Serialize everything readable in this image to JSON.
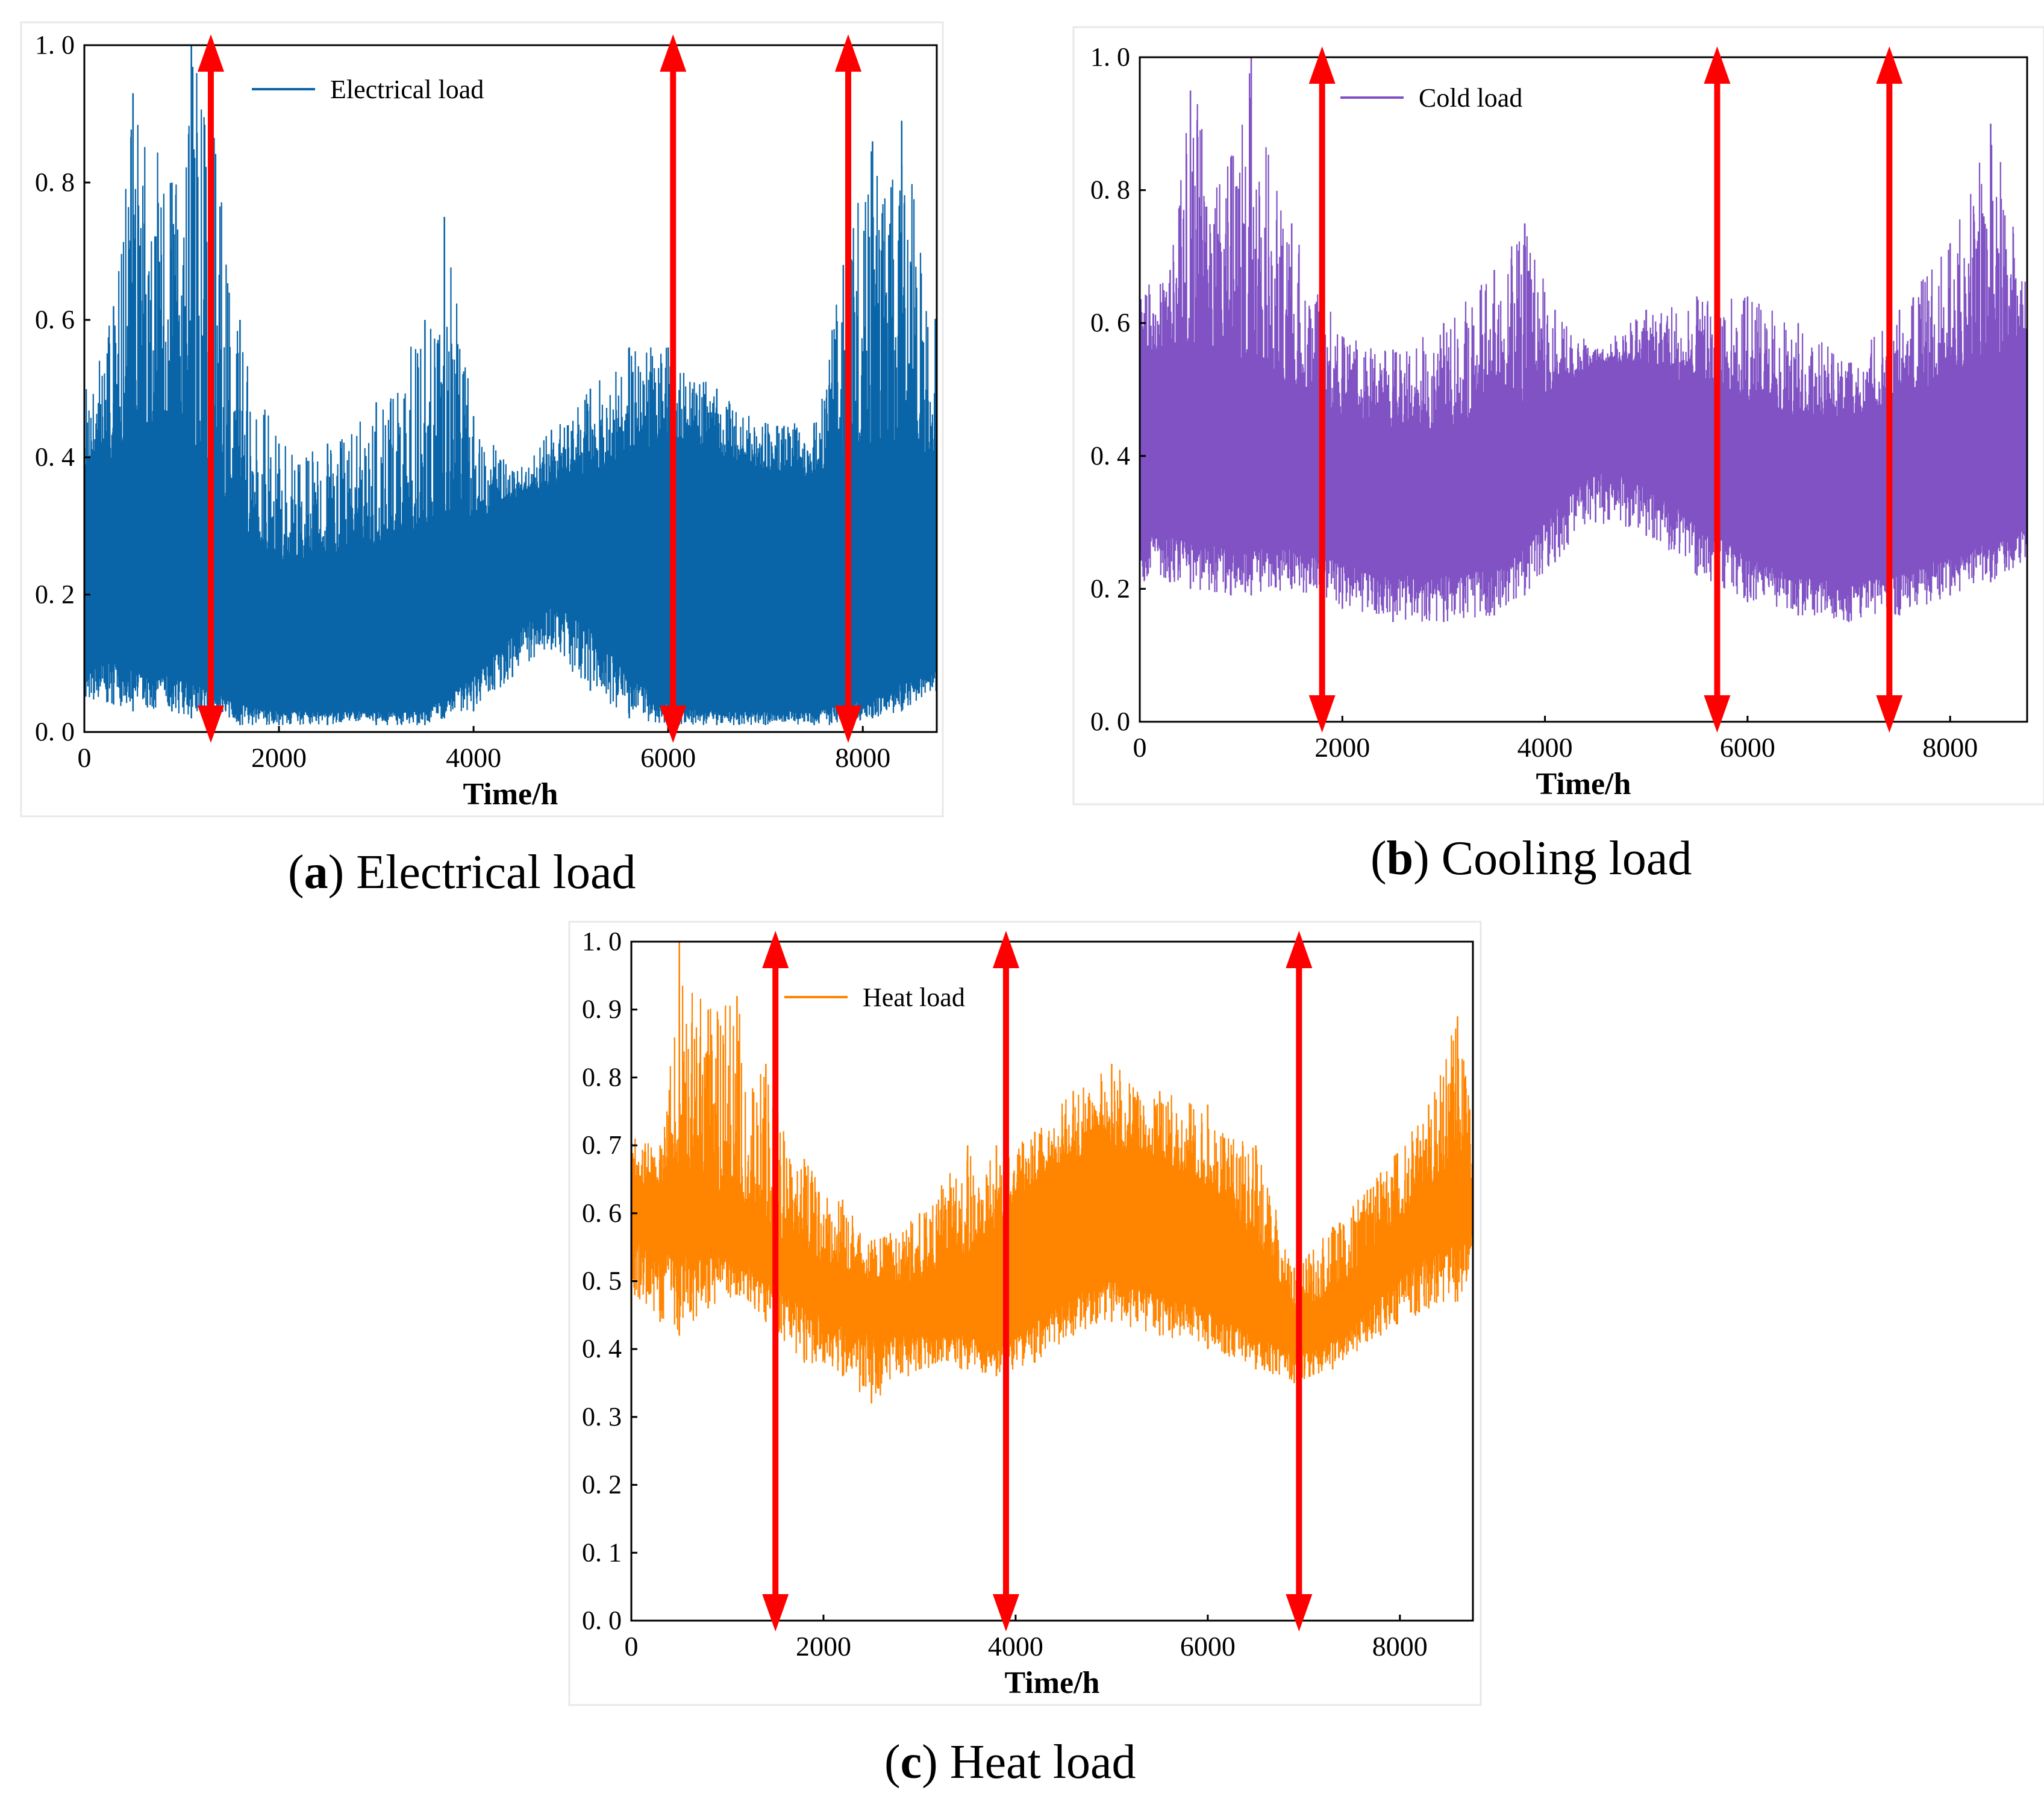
{
  "figure": {
    "x_label": "Time/h",
    "x_ticks": [
      "0",
      "2000",
      "4000",
      "6000",
      "8000"
    ],
    "arrow_color": "#ff0000"
  },
  "chart_data": [
    {
      "type": "line",
      "caption_letter": "a",
      "caption_text": "Electrical load",
      "legend": "Electrical load",
      "color": "#0a65a8",
      "xlabel": "Time/h",
      "ylabel": "",
      "xlim": [
        0,
        8760
      ],
      "ylim": [
        0,
        1.0
      ],
      "x_ticks": [
        0,
        2000,
        4000,
        6000,
        8000
      ],
      "y_ticks": [
        0.0,
        0.2,
        0.4,
        0.6,
        0.8,
        1.0
      ],
      "y_tick_labels": [
        "0. 0",
        "0. 2",
        "0. 4",
        "0. 6",
        "0. 8",
        "1. 0"
      ],
      "legend_position": "top-left",
      "marker_lines_x": [
        1300,
        6050,
        7850
      ],
      "envelope_x": [
        0,
        300,
        500,
        900,
        1100,
        1300,
        1600,
        2000,
        2500,
        3000,
        3500,
        3700,
        4000,
        4400,
        4800,
        5200,
        5600,
        6000,
        6500,
        7000,
        7500,
        7800,
        8100,
        8400,
        8760
      ],
      "envelope_upper": [
        0.5,
        0.62,
        0.93,
        0.8,
        1.0,
        0.9,
        0.6,
        0.42,
        0.42,
        0.48,
        0.6,
        0.75,
        0.46,
        0.38,
        0.44,
        0.5,
        0.56,
        0.56,
        0.5,
        0.45,
        0.45,
        0.68,
        0.86,
        0.89,
        0.66
      ],
      "envelope_lower": [
        0.05,
        0.04,
        0.03,
        0.03,
        0.02,
        0.02,
        0.01,
        0.01,
        0.01,
        0.01,
        0.01,
        0.02,
        0.03,
        0.08,
        0.12,
        0.06,
        0.02,
        0.01,
        0.01,
        0.01,
        0.01,
        0.01,
        0.02,
        0.03,
        0.06
      ],
      "core_upper": [
        0.38,
        0.4,
        0.45,
        0.42,
        0.42,
        0.38,
        0.3,
        0.25,
        0.25,
        0.27,
        0.3,
        0.32,
        0.3,
        0.34,
        0.36,
        0.38,
        0.4,
        0.42,
        0.4,
        0.38,
        0.37,
        0.4,
        0.42,
        0.42,
        0.4
      ],
      "core_lower": [
        0.1,
        0.1,
        0.09,
        0.08,
        0.07,
        0.06,
        0.04,
        0.03,
        0.03,
        0.03,
        0.03,
        0.05,
        0.08,
        0.14,
        0.19,
        0.15,
        0.08,
        0.04,
        0.03,
        0.03,
        0.03,
        0.04,
        0.05,
        0.07,
        0.09
      ]
    },
    {
      "type": "line",
      "caption_letter": "b",
      "caption_text": "Cooling load",
      "legend": "Cold load",
      "color": "#8052c4",
      "xlabel": "Time/h",
      "ylabel": "",
      "xlim": [
        0,
        8760
      ],
      "ylim": [
        0,
        1.0
      ],
      "x_ticks": [
        0,
        2000,
        4000,
        6000,
        8000
      ],
      "y_ticks": [
        0.0,
        0.2,
        0.4,
        0.6,
        0.8,
        1.0
      ],
      "y_tick_labels": [
        "0. 0",
        "0. 2",
        "0. 4",
        "0. 6",
        "0. 8",
        "1. 0"
      ],
      "legend_position": "top-left",
      "marker_lines_x": [
        1800,
        5700,
        7400
      ],
      "envelope_x": [
        0,
        300,
        500,
        900,
        1100,
        1500,
        2000,
        2500,
        3000,
        3500,
        3800,
        4100,
        4500,
        5000,
        5500,
        6000,
        6500,
        7000,
        7500,
        8000,
        8400,
        8760
      ],
      "envelope_upper": [
        0.66,
        0.68,
        0.95,
        0.85,
        1.0,
        0.75,
        0.58,
        0.56,
        0.6,
        0.68,
        0.75,
        0.62,
        0.56,
        0.62,
        0.64,
        0.64,
        0.6,
        0.54,
        0.62,
        0.72,
        0.9,
        0.72
      ],
      "envelope_lower": [
        0.21,
        0.21,
        0.2,
        0.19,
        0.19,
        0.2,
        0.17,
        0.15,
        0.15,
        0.16,
        0.19,
        0.24,
        0.3,
        0.28,
        0.22,
        0.18,
        0.16,
        0.15,
        0.16,
        0.19,
        0.21,
        0.24
      ],
      "core_upper": [
        0.56,
        0.56,
        0.57,
        0.55,
        0.54,
        0.5,
        0.46,
        0.44,
        0.44,
        0.46,
        0.48,
        0.5,
        0.54,
        0.54,
        0.5,
        0.48,
        0.46,
        0.46,
        0.48,
        0.52,
        0.54,
        0.54
      ],
      "core_lower": [
        0.28,
        0.28,
        0.27,
        0.26,
        0.26,
        0.26,
        0.24,
        0.22,
        0.22,
        0.23,
        0.26,
        0.32,
        0.38,
        0.36,
        0.3,
        0.25,
        0.22,
        0.21,
        0.22,
        0.25,
        0.27,
        0.29
      ]
    },
    {
      "type": "line",
      "caption_letter": "c",
      "caption_text": "Heat load",
      "legend": "Heat load",
      "color": "#ff8400",
      "xlabel": "Time/h",
      "ylabel": "",
      "xlim": [
        0,
        8760
      ],
      "ylim": [
        0,
        1.0
      ],
      "x_ticks": [
        0,
        2000,
        4000,
        6000,
        8000
      ],
      "y_ticks": [
        0.0,
        0.1,
        0.2,
        0.3,
        0.4,
        0.5,
        0.6,
        0.7,
        0.8,
        0.9,
        1.0
      ],
      "y_tick_labels": [
        "0. 0",
        "0. 1",
        "0. 2",
        "0. 3",
        "0. 4",
        "0. 5",
        "0. 6",
        "0. 7",
        "0. 8",
        "0. 9",
        "1. 0"
      ],
      "legend_position": "top-left",
      "marker_lines_x": [
        1500,
        3900,
        6950
      ],
      "envelope_x": [
        0,
        300,
        500,
        800,
        1100,
        1400,
        1800,
        2200,
        2500,
        3000,
        3500,
        3800,
        4200,
        4600,
        5000,
        5500,
        6000,
        6500,
        6900,
        7300,
        7800,
        8300,
        8600,
        8760
      ],
      "envelope_upper": [
        0.72,
        0.7,
        1.0,
        0.9,
        0.92,
        0.82,
        0.68,
        0.62,
        0.56,
        0.6,
        0.7,
        0.7,
        0.72,
        0.78,
        0.82,
        0.78,
        0.76,
        0.7,
        0.52,
        0.58,
        0.66,
        0.76,
        0.89,
        0.74
      ],
      "envelope_lower": [
        0.48,
        0.44,
        0.42,
        0.46,
        0.48,
        0.44,
        0.38,
        0.36,
        0.32,
        0.37,
        0.37,
        0.36,
        0.38,
        0.42,
        0.44,
        0.42,
        0.4,
        0.37,
        0.35,
        0.37,
        0.42,
        0.46,
        0.47,
        0.52
      ],
      "core_upper": [
        0.64,
        0.64,
        0.66,
        0.64,
        0.62,
        0.58,
        0.54,
        0.52,
        0.5,
        0.5,
        0.54,
        0.58,
        0.64,
        0.68,
        0.7,
        0.68,
        0.64,
        0.56,
        0.46,
        0.48,
        0.56,
        0.64,
        0.68,
        0.64
      ],
      "core_lower": [
        0.56,
        0.54,
        0.54,
        0.54,
        0.54,
        0.5,
        0.46,
        0.44,
        0.42,
        0.42,
        0.42,
        0.4,
        0.44,
        0.48,
        0.5,
        0.48,
        0.46,
        0.42,
        0.39,
        0.41,
        0.48,
        0.54,
        0.56,
        0.57
      ]
    }
  ]
}
